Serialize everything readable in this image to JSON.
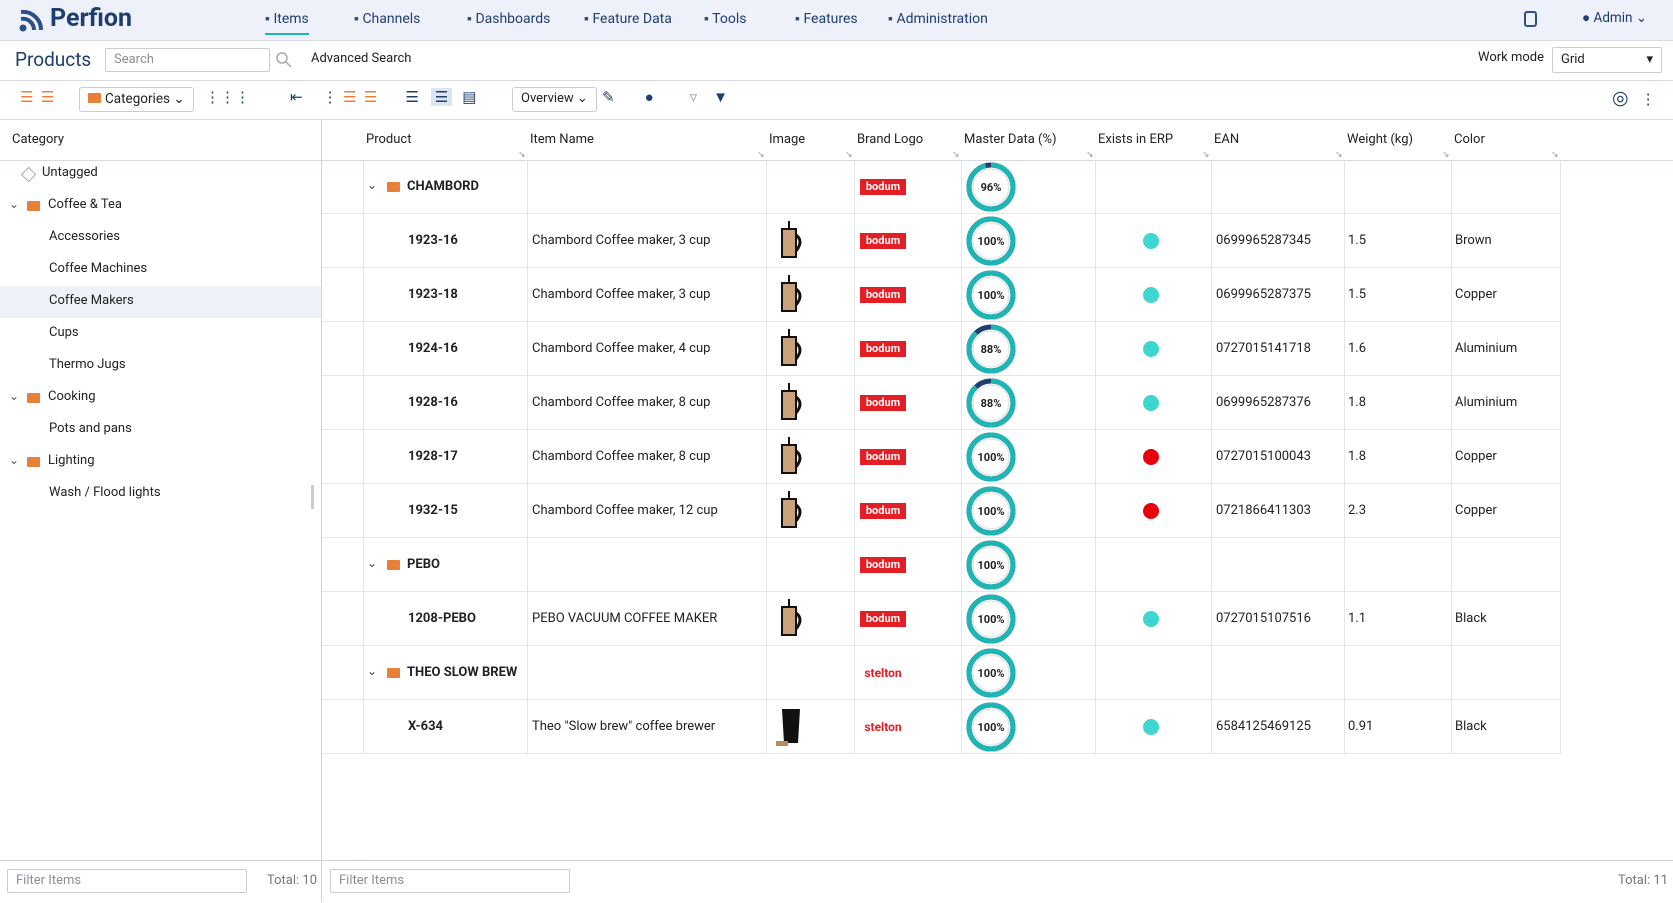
{
  "header": {
    "logo": "Perfion",
    "nav": [
      "Items",
      "Channels",
      "Dashboards",
      "Feature Data",
      "Tools",
      "Features",
      "Administration"
    ],
    "user": "Admin"
  },
  "toolbar": {
    "title": "Products",
    "search_placeholder": "Search",
    "advanced_search": "Advanced Search",
    "work_mode_label": "Work mode",
    "work_mode": "Grid"
  },
  "left": {
    "categories_button": "Categories",
    "column": "Category",
    "tree": [
      {
        "label": "Untagged"
      },
      {
        "label": "Coffee & Tea",
        "children": [
          {
            "label": "Accessories"
          },
          {
            "label": "Coffee Machines"
          },
          {
            "label": "Coffee Makers",
            "selected": true
          },
          {
            "label": "Cups"
          },
          {
            "label": "Thermo Jugs"
          }
        ]
      },
      {
        "label": "Cooking",
        "children": [
          {
            "label": "Pots and pans"
          }
        ]
      },
      {
        "label": "Lighting",
        "children": [
          {
            "label": "Wash / Flood lights"
          }
        ]
      }
    ],
    "filter_placeholder": "Filter Items",
    "total": "Total: 10"
  },
  "grid": {
    "view": "Overview",
    "columns": [
      "Product",
      "Item Name",
      "Image",
      "Brand Logo",
      "Master Data (%)",
      "Exists in ERP",
      "EAN",
      "Weight (kg)",
      "Color"
    ],
    "groups": [
      {
        "name": "CHAMBORD",
        "brand": "bodum",
        "master_data": {
          "value": 96,
          "label": "96%"
        },
        "items": [
          {
            "product": "1923-16",
            "item_name": "Chambord Coffee maker, 3 cup",
            "brand": "bodum",
            "master_data": {
              "value": 100,
              "label": "100%"
            },
            "erp": true,
            "ean": "0699965287345",
            "weight": "1.5",
            "color": "Brown"
          },
          {
            "product": "1923-18",
            "item_name": "Chambord Coffee maker, 3 cup",
            "brand": "bodum",
            "master_data": {
              "value": 100,
              "label": "100%"
            },
            "erp": true,
            "ean": "0699965287375",
            "weight": "1.5",
            "color": "Copper"
          },
          {
            "product": "1924-16",
            "item_name": "Chambord Coffee maker, 4 cup",
            "brand": "bodum",
            "master_data": {
              "value": 88,
              "label": "88%"
            },
            "erp": true,
            "ean": "0727015141718",
            "weight": "1.6",
            "color": "Aluminium"
          },
          {
            "product": "1928-16",
            "item_name": "Chambord Coffee maker, 8 cup",
            "brand": "bodum",
            "master_data": {
              "value": 88,
              "label": "88%"
            },
            "erp": true,
            "ean": "0699965287376",
            "weight": "1.8",
            "color": "Aluminium"
          },
          {
            "product": "1928-17",
            "item_name": "Chambord Coffee maker, 8 cup",
            "brand": "bodum",
            "master_data": {
              "value": 100,
              "label": "100%"
            },
            "erp": false,
            "ean": "0727015100043",
            "weight": "1.8",
            "color": "Copper"
          },
          {
            "product": "1932-15",
            "item_name": "Chambord Coffee maker, 12 cup",
            "brand": "bodum",
            "master_data": {
              "value": 100,
              "label": "100%"
            },
            "erp": false,
            "ean": "0721866411303",
            "weight": "2.3",
            "color": "Copper"
          }
        ]
      },
      {
        "name": "PEBO",
        "brand": "bodum",
        "master_data": {
          "value": 100,
          "label": "100%"
        },
        "items": [
          {
            "product": "1208-PEBO",
            "item_name": "PEBO VACUUM COFFEE MAKER",
            "brand": "bodum",
            "master_data": {
              "value": 100,
              "label": "100%"
            },
            "erp": true,
            "ean": "0727015107516",
            "weight": "1.1",
            "color": "Black"
          }
        ]
      },
      {
        "name": "THEO SLOW BREW",
        "brand": "stelton",
        "master_data": {
          "value": 100,
          "label": "100%"
        },
        "items": [
          {
            "product": "X-634",
            "item_name": "Theo \"Slow brew\" coffee brewer",
            "brand": "stelton",
            "master_data": {
              "value": 100,
              "label": "100%"
            },
            "erp": true,
            "ean": "6584125469125",
            "weight": "0.91",
            "color": "Black"
          }
        ]
      }
    ],
    "filter_placeholder": "Filter Items",
    "total": "Total: 11"
  }
}
